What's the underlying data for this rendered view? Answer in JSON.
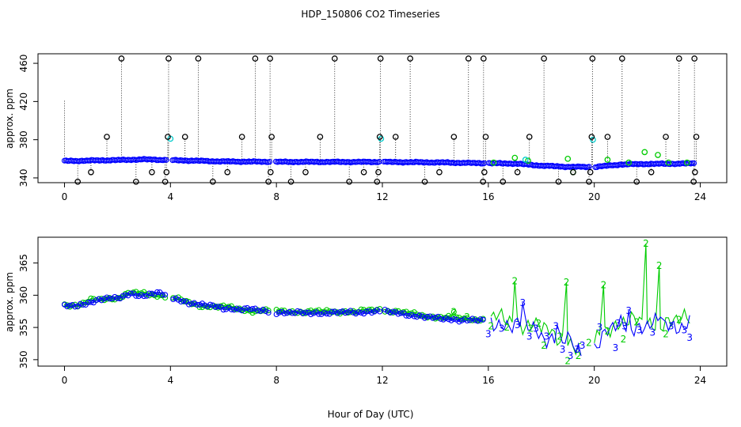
{
  "chart_data": {
    "title": "HDP_150806  CO2 Timeseries",
    "xlabel": "Hour of Day (UTC)",
    "panels": [
      {
        "type": "scatter",
        "ylabel": "approx. ppm",
        "xlim": [
          -1,
          25
        ],
        "ylim": [
          335,
          470
        ],
        "xticks": [
          0,
          4,
          8,
          12,
          16,
          20,
          24
        ],
        "yticks": [
          340,
          380,
          420,
          460
        ],
        "base_series": {
          "name": "",
          "color": "#0000ff",
          "knots": [
            [
              0.0,
              357.8
            ],
            [
              0.5,
              357.8
            ],
            [
              1.0,
              358.2
            ],
            [
              2.0,
              358.6
            ],
            [
              3.0,
              359.4
            ],
            [
              4.0,
              358.6
            ],
            [
              6.0,
              357.2
            ],
            [
              8.0,
              356.8
            ],
            [
              10.0,
              356.7
            ],
            [
              12.0,
              356.7
            ],
            [
              14.0,
              356.2
            ],
            [
              16.0,
              355.3
            ],
            [
              17.0,
              355.0
            ],
            [
              18.0,
              352.8
            ],
            [
              19.0,
              351.6
            ],
            [
              20.0,
              351.4
            ],
            [
              21.0,
              354.0
            ],
            [
              22.0,
              354.6
            ],
            [
              23.0,
              354.8
            ],
            [
              23.8,
              355.2
            ]
          ],
          "gaps": [
            [
              3.85,
              4.05
            ],
            [
              7.75,
              7.95
            ],
            [
              11.9,
              12.05
            ],
            [
              15.85,
              16.0
            ],
            [
              19.85,
              20.0
            ]
          ]
        },
        "overlay_points": {
          "color": "#00cc00",
          "points": [
            [
              16.2,
              356
            ],
            [
              17.0,
              361
            ],
            [
              17.5,
              358
            ],
            [
              19.0,
              360
            ],
            [
              19.2,
              346
            ],
            [
              20.5,
              359
            ],
            [
              21.3,
              356
            ],
            [
              21.9,
              367
            ],
            [
              22.4,
              364
            ],
            [
              22.8,
              356
            ],
            [
              23.5,
              356
            ]
          ]
        },
        "cyan_points": {
          "color": "#00cccc",
          "points": [
            [
              4.0,
              381
            ],
            [
              11.95,
              381
            ],
            [
              19.95,
              380
            ],
            [
              17.4,
              359
            ]
          ]
        },
        "spike_points": {
          "color": "#000000",
          "points": [
            [
              0.5,
              336
            ],
            [
              1.0,
              346
            ],
            [
              1.6,
              383
            ],
            [
              2.15,
              465
            ],
            [
              2.7,
              336
            ],
            [
              3.3,
              346
            ],
            [
              3.8,
              336
            ],
            [
              3.85,
              346
            ],
            [
              3.9,
              383
            ],
            [
              3.93,
              465
            ],
            [
              4.55,
              383
            ],
            [
              5.05,
              465
            ],
            [
              5.6,
              336
            ],
            [
              6.15,
              346
            ],
            [
              6.7,
              383
            ],
            [
              7.2,
              465
            ],
            [
              7.7,
              336
            ],
            [
              7.78,
              346
            ],
            [
              7.82,
              383
            ],
            [
              7.76,
              465
            ],
            [
              8.55,
              336
            ],
            [
              9.1,
              346
            ],
            [
              9.65,
              383
            ],
            [
              10.2,
              465
            ],
            [
              10.75,
              336
            ],
            [
              11.3,
              346
            ],
            [
              11.8,
              336
            ],
            [
              11.85,
              346
            ],
            [
              11.9,
              383
            ],
            [
              11.93,
              465
            ],
            [
              12.5,
              383
            ],
            [
              13.05,
              465
            ],
            [
              13.6,
              336
            ],
            [
              14.15,
              346
            ],
            [
              14.7,
              383
            ],
            [
              15.25,
              465
            ],
            [
              15.8,
              336
            ],
            [
              15.85,
              346
            ],
            [
              15.9,
              383
            ],
            [
              15.82,
              465
            ],
            [
              16.55,
              336
            ],
            [
              17.1,
              346
            ],
            [
              17.55,
              383
            ],
            [
              18.1,
              465
            ],
            [
              18.65,
              336
            ],
            [
              19.2,
              346
            ],
            [
              19.8,
              336
            ],
            [
              19.85,
              346
            ],
            [
              19.9,
              383
            ],
            [
              19.93,
              465
            ],
            [
              20.5,
              383
            ],
            [
              21.05,
              465
            ],
            [
              21.6,
              336
            ],
            [
              22.15,
              346
            ],
            [
              22.7,
              383
            ],
            [
              23.2,
              465
            ],
            [
              23.75,
              336
            ],
            [
              23.8,
              346
            ],
            [
              23.85,
              383
            ],
            [
              23.78,
              465
            ]
          ]
        }
      },
      {
        "type": "line",
        "ylabel": "approx. ppm",
        "xlim": [
          -1,
          25
        ],
        "ylim": [
          349,
          369
        ],
        "xticks": [
          0,
          4,
          8,
          12,
          16,
          20,
          24
        ],
        "yticks": [
          350,
          355,
          360,
          365
        ],
        "series_blue": {
          "label": "3",
          "color": "#0000ff",
          "knots": [
            [
              0.0,
              358.4
            ],
            [
              0.5,
              358.2
            ],
            [
              1.0,
              359.0
            ],
            [
              1.5,
              359.6
            ],
            [
              2.0,
              359.4
            ],
            [
              2.5,
              360.2
            ],
            [
              3.0,
              360.0
            ],
            [
              3.5,
              360.4
            ],
            [
              4.0,
              359.6
            ],
            [
              5.0,
              358.6
            ],
            [
              6.0,
              358.0
            ],
            [
              7.0,
              357.8
            ],
            [
              7.8,
              357.4
            ],
            [
              9.0,
              357.2
            ],
            [
              10.0,
              357.3
            ],
            [
              11.0,
              357.3
            ],
            [
              11.8,
              357.6
            ],
            [
              13.0,
              357.0
            ],
            [
              14.0,
              356.4
            ],
            [
              15.0,
              356.2
            ],
            [
              15.9,
              356.0
            ],
            [
              16.5,
              355.8
            ],
            [
              17.0,
              355.4
            ],
            [
              17.5,
              355.0
            ],
            [
              18.0,
              354.0
            ],
            [
              18.5,
              353.4
            ],
            [
              19.0,
              352.6
            ],
            [
              19.5,
              351.8
            ],
            [
              20.0,
              352.4
            ],
            [
              20.5,
              354.2
            ],
            [
              21.0,
              355.2
            ],
            [
              22.0,
              355.4
            ],
            [
              23.0,
              355.2
            ],
            [
              23.7,
              356.2
            ]
          ],
          "gaps": [
            [
              3.85,
              4.05
            ],
            [
              7.75,
              7.95
            ],
            [
              11.9,
              12.05
            ],
            [
              15.85,
              16.0
            ],
            [
              19.6,
              19.95
            ]
          ]
        },
        "series_green": {
          "label": "2",
          "color": "#00cc00",
          "knots": [
            [
              0.0,
              358.6
            ],
            [
              0.5,
              358.4
            ],
            [
              1.0,
              359.2
            ],
            [
              1.5,
              359.4
            ],
            [
              2.0,
              359.6
            ],
            [
              2.5,
              360.4
            ],
            [
              3.0,
              360.2
            ],
            [
              3.5,
              360.0
            ],
            [
              4.0,
              359.8
            ],
            [
              5.0,
              358.4
            ],
            [
              6.0,
              358.2
            ],
            [
              7.0,
              357.6
            ],
            [
              7.8,
              357.6
            ],
            [
              9.0,
              357.4
            ],
            [
              10.0,
              357.5
            ],
            [
              11.0,
              357.4
            ],
            [
              11.8,
              357.8
            ],
            [
              13.0,
              357.2
            ],
            [
              14.0,
              356.6
            ],
            [
              15.0,
              356.4
            ],
            [
              15.9,
              356.2
            ],
            [
              16.5,
              356.2
            ],
            [
              17.0,
              356.0
            ],
            [
              17.5,
              355.6
            ],
            [
              18.0,
              354.6
            ],
            [
              18.5,
              353.8
            ],
            [
              19.0,
              353.2
            ],
            [
              19.5,
              351.4
            ],
            [
              20.0,
              352.8
            ],
            [
              20.5,
              355.4
            ],
            [
              21.0,
              355.6
            ],
            [
              22.0,
              355.8
            ],
            [
              23.0,
              355.6
            ],
            [
              23.7,
              356.6
            ]
          ],
          "gaps": [
            [
              3.85,
              4.05
            ],
            [
              7.75,
              7.95
            ],
            [
              11.9,
              12.05
            ],
            [
              15.85,
              16.0
            ],
            [
              19.6,
              19.95
            ]
          ]
        },
        "blue_spikes": [
          [
            17.3,
            358.8
          ],
          [
            18.6,
            355.4
          ],
          [
            19.3,
            351.2
          ],
          [
            21.3,
            357.6
          ],
          [
            22.5,
            356.6
          ]
        ],
        "green_spikes": [
          [
            17.0,
            362.2
          ],
          [
            18.95,
            362.0
          ],
          [
            20.35,
            361.6
          ],
          [
            21.95,
            368.0
          ],
          [
            22.45,
            364.6
          ],
          [
            14.7,
            357.4
          ],
          [
            17.9,
            355.6
          ]
        ],
        "blue_labels": [
          [
            16.0,
            354.0
          ],
          [
            16.5,
            354.8
          ],
          [
            17.1,
            355.4
          ],
          [
            17.3,
            358.8
          ],
          [
            17.55,
            353.6
          ],
          [
            17.8,
            354.8
          ],
          [
            18.2,
            353.6
          ],
          [
            18.55,
            355.2
          ],
          [
            18.8,
            351.6
          ],
          [
            19.35,
            351.6
          ],
          [
            19.55,
            352.2
          ],
          [
            20.2,
            355.0
          ],
          [
            20.9,
            355.6
          ],
          [
            21.15,
            355.2
          ],
          [
            21.3,
            357.6
          ],
          [
            21.7,
            354.6
          ],
          [
            22.2,
            354.2
          ],
          [
            22.9,
            355.2
          ],
          [
            23.4,
            354.6
          ],
          [
            23.6,
            353.4
          ],
          [
            20.8,
            351.8
          ],
          [
            19.1,
            350.6
          ]
        ],
        "green_labels": [
          [
            15.2,
            356.6
          ],
          [
            16.1,
            355.2
          ],
          [
            16.7,
            355.0
          ],
          [
            17.0,
            362.2
          ],
          [
            17.6,
            354.8
          ],
          [
            18.1,
            352.2
          ],
          [
            18.7,
            353.6
          ],
          [
            19.0,
            349.8
          ],
          [
            19.4,
            350.6
          ],
          [
            19.8,
            352.6
          ],
          [
            20.5,
            354.4
          ],
          [
            20.35,
            361.6
          ],
          [
            21.1,
            353.2
          ],
          [
            21.6,
            355.8
          ],
          [
            21.95,
            368.0
          ],
          [
            22.45,
            364.6
          ],
          [
            22.7,
            354.0
          ],
          [
            23.2,
            356.2
          ],
          [
            14.7,
            357.4
          ],
          [
            17.9,
            355.6
          ],
          [
            18.95,
            362.0
          ]
        ]
      }
    ]
  }
}
